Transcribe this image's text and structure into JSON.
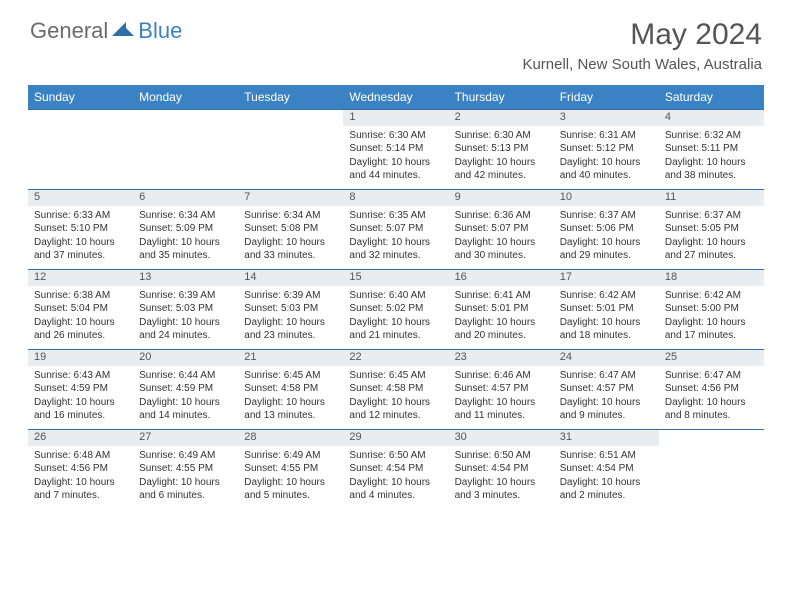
{
  "brand": {
    "part1": "General",
    "part2": "Blue"
  },
  "title": "May 2024",
  "location": "Kurnell, New South Wales, Australia",
  "colors": {
    "header_bg": "#3b82c4",
    "daynum_bg": "#e9edf0",
    "rule": "#3b6fa0",
    "text": "#333333",
    "title_text": "#555555"
  },
  "day_headers": [
    "Sunday",
    "Monday",
    "Tuesday",
    "Wednesday",
    "Thursday",
    "Friday",
    "Saturday"
  ],
  "weeks": [
    {
      "nums": [
        "",
        "",
        "",
        "1",
        "2",
        "3",
        "4"
      ],
      "cells": [
        null,
        null,
        null,
        {
          "sunrise": "6:30 AM",
          "sunset": "5:14 PM",
          "daylight": "10 hours and 44 minutes."
        },
        {
          "sunrise": "6:30 AM",
          "sunset": "5:13 PM",
          "daylight": "10 hours and 42 minutes."
        },
        {
          "sunrise": "6:31 AM",
          "sunset": "5:12 PM",
          "daylight": "10 hours and 40 minutes."
        },
        {
          "sunrise": "6:32 AM",
          "sunset": "5:11 PM",
          "daylight": "10 hours and 38 minutes."
        }
      ]
    },
    {
      "nums": [
        "5",
        "6",
        "7",
        "8",
        "9",
        "10",
        "11"
      ],
      "cells": [
        {
          "sunrise": "6:33 AM",
          "sunset": "5:10 PM",
          "daylight": "10 hours and 37 minutes."
        },
        {
          "sunrise": "6:34 AM",
          "sunset": "5:09 PM",
          "daylight": "10 hours and 35 minutes."
        },
        {
          "sunrise": "6:34 AM",
          "sunset": "5:08 PM",
          "daylight": "10 hours and 33 minutes."
        },
        {
          "sunrise": "6:35 AM",
          "sunset": "5:07 PM",
          "daylight": "10 hours and 32 minutes."
        },
        {
          "sunrise": "6:36 AM",
          "sunset": "5:07 PM",
          "daylight": "10 hours and 30 minutes."
        },
        {
          "sunrise": "6:37 AM",
          "sunset": "5:06 PM",
          "daylight": "10 hours and 29 minutes."
        },
        {
          "sunrise": "6:37 AM",
          "sunset": "5:05 PM",
          "daylight": "10 hours and 27 minutes."
        }
      ]
    },
    {
      "nums": [
        "12",
        "13",
        "14",
        "15",
        "16",
        "17",
        "18"
      ],
      "cells": [
        {
          "sunrise": "6:38 AM",
          "sunset": "5:04 PM",
          "daylight": "10 hours and 26 minutes."
        },
        {
          "sunrise": "6:39 AM",
          "sunset": "5:03 PM",
          "daylight": "10 hours and 24 minutes."
        },
        {
          "sunrise": "6:39 AM",
          "sunset": "5:03 PM",
          "daylight": "10 hours and 23 minutes."
        },
        {
          "sunrise": "6:40 AM",
          "sunset": "5:02 PM",
          "daylight": "10 hours and 21 minutes."
        },
        {
          "sunrise": "6:41 AM",
          "sunset": "5:01 PM",
          "daylight": "10 hours and 20 minutes."
        },
        {
          "sunrise": "6:42 AM",
          "sunset": "5:01 PM",
          "daylight": "10 hours and 18 minutes."
        },
        {
          "sunrise": "6:42 AM",
          "sunset": "5:00 PM",
          "daylight": "10 hours and 17 minutes."
        }
      ]
    },
    {
      "nums": [
        "19",
        "20",
        "21",
        "22",
        "23",
        "24",
        "25"
      ],
      "cells": [
        {
          "sunrise": "6:43 AM",
          "sunset": "4:59 PM",
          "daylight": "10 hours and 16 minutes."
        },
        {
          "sunrise": "6:44 AM",
          "sunset": "4:59 PM",
          "daylight": "10 hours and 14 minutes."
        },
        {
          "sunrise": "6:45 AM",
          "sunset": "4:58 PM",
          "daylight": "10 hours and 13 minutes."
        },
        {
          "sunrise": "6:45 AM",
          "sunset": "4:58 PM",
          "daylight": "10 hours and 12 minutes."
        },
        {
          "sunrise": "6:46 AM",
          "sunset": "4:57 PM",
          "daylight": "10 hours and 11 minutes."
        },
        {
          "sunrise": "6:47 AM",
          "sunset": "4:57 PM",
          "daylight": "10 hours and 9 minutes."
        },
        {
          "sunrise": "6:47 AM",
          "sunset": "4:56 PM",
          "daylight": "10 hours and 8 minutes."
        }
      ]
    },
    {
      "nums": [
        "26",
        "27",
        "28",
        "29",
        "30",
        "31",
        ""
      ],
      "cells": [
        {
          "sunrise": "6:48 AM",
          "sunset": "4:56 PM",
          "daylight": "10 hours and 7 minutes."
        },
        {
          "sunrise": "6:49 AM",
          "sunset": "4:55 PM",
          "daylight": "10 hours and 6 minutes."
        },
        {
          "sunrise": "6:49 AM",
          "sunset": "4:55 PM",
          "daylight": "10 hours and 5 minutes."
        },
        {
          "sunrise": "6:50 AM",
          "sunset": "4:54 PM",
          "daylight": "10 hours and 4 minutes."
        },
        {
          "sunrise": "6:50 AM",
          "sunset": "4:54 PM",
          "daylight": "10 hours and 3 minutes."
        },
        {
          "sunrise": "6:51 AM",
          "sunset": "4:54 PM",
          "daylight": "10 hours and 2 minutes."
        },
        null
      ]
    }
  ],
  "labels": {
    "sunrise": "Sunrise: ",
    "sunset": "Sunset: ",
    "daylight": "Daylight: "
  }
}
